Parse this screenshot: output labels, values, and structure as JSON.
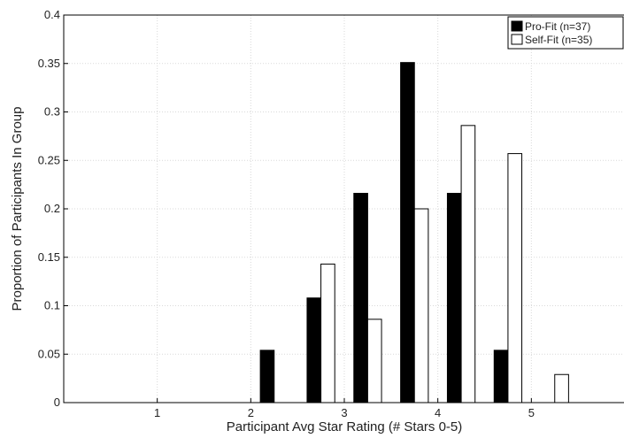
{
  "chart_data": {
    "type": "bar",
    "xlabel": "Participant Avg Star Rating (# Stars 0-5)",
    "ylabel": "Proportion of Participants In Group",
    "ylim": [
      0,
      0.4
    ],
    "yticks": [
      "0",
      "0.05",
      "0.1",
      "0.15",
      "0.2",
      "0.25",
      "0.3",
      "0.35",
      "0.4"
    ],
    "xlim": [
      0,
      6
    ],
    "xticks": [
      "1",
      "2",
      "3",
      "4",
      "5"
    ],
    "x": [
      0.25,
      0.75,
      1.25,
      1.75,
      2.25,
      2.75,
      3.25,
      3.75,
      4.25,
      4.75,
      5.25
    ],
    "grid": true,
    "legend": "top-right",
    "series": [
      {
        "name": "Pro-Fit (n=37)",
        "color": "#000000",
        "values": [
          0,
          0,
          0,
          0,
          0.054,
          0.108,
          0.216,
          0.351,
          0.216,
          0.054,
          0
        ]
      },
      {
        "name": "Self-Fit (n=35)",
        "color": "#ffffff",
        "values": [
          0,
          0,
          0,
          0,
          0,
          0.143,
          0.086,
          0.2,
          0.286,
          0.257,
          0.029
        ]
      }
    ]
  }
}
